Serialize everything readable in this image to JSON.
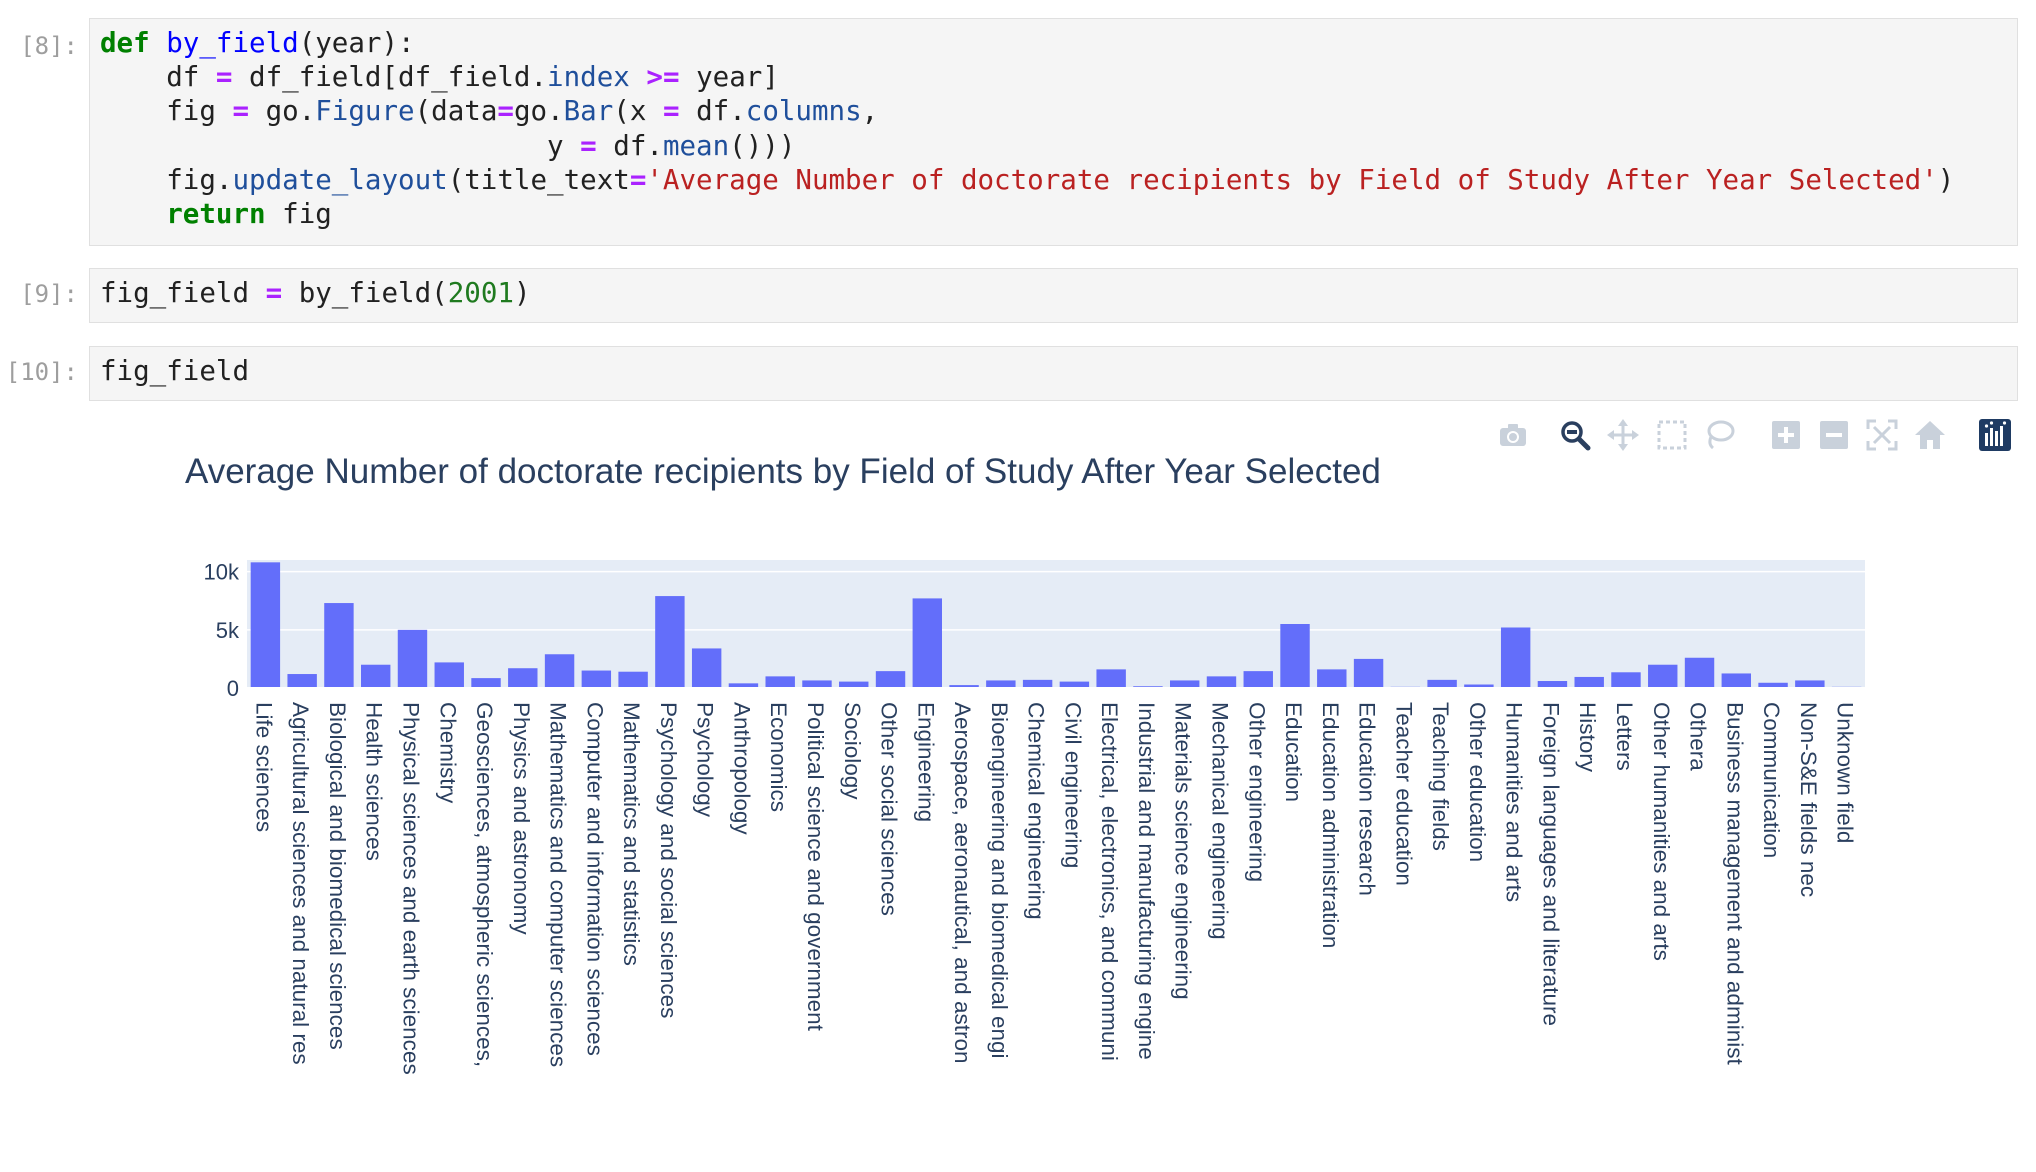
{
  "cells": [
    {
      "prompt": "[8]:",
      "lines": [
        [
          [
            "kw",
            "def"
          ],
          [
            "t",
            " "
          ],
          [
            "fn",
            "by_field"
          ],
          [
            "t",
            "(year):"
          ]
        ],
        [
          [
            "t",
            "    df "
          ],
          [
            "op",
            "="
          ],
          [
            "t",
            " df_field[df_field."
          ],
          [
            "attr",
            "index"
          ],
          [
            "t",
            " "
          ],
          [
            "op",
            ">="
          ],
          [
            "t",
            " year]"
          ]
        ],
        [
          [
            "t",
            "    fig "
          ],
          [
            "op",
            "="
          ],
          [
            "t",
            " go."
          ],
          [
            "attr",
            "Figure"
          ],
          [
            "t",
            "(data"
          ],
          [
            "op",
            "="
          ],
          [
            "t",
            "go."
          ],
          [
            "attr",
            "Bar"
          ],
          [
            "t",
            "(x "
          ],
          [
            "op",
            "="
          ],
          [
            "t",
            " df."
          ],
          [
            "attr",
            "columns"
          ],
          [
            "t",
            ","
          ]
        ],
        [
          [
            "t",
            "                           y "
          ],
          [
            "op",
            "="
          ],
          [
            "t",
            " df."
          ],
          [
            "attr",
            "mean"
          ],
          [
            "t",
            "()))"
          ]
        ],
        [
          [
            "t",
            "    fig."
          ],
          [
            "attr",
            "update_layout"
          ],
          [
            "t",
            "(title_text"
          ],
          [
            "op",
            "="
          ],
          [
            "str",
            "'Average Number of doctorate recipients by Field of Study After Year Selected'"
          ],
          [
            "t",
            ")"
          ]
        ],
        [
          [
            "t",
            "    "
          ],
          [
            "kw",
            "return"
          ],
          [
            "t",
            " fig"
          ]
        ]
      ]
    },
    {
      "prompt": "[9]:",
      "lines": [
        [
          [
            "t",
            "fig_field "
          ],
          [
            "op",
            "="
          ],
          [
            "t",
            " by_field("
          ],
          [
            "num",
            "2001"
          ],
          [
            "t",
            ")"
          ]
        ]
      ]
    },
    {
      "prompt": "[10]:",
      "lines": [
        [
          [
            "t",
            "fig_field"
          ]
        ]
      ]
    }
  ],
  "toolbar": {
    "icons": [
      "camera-icon",
      "zoom-icon",
      "pan-icon",
      "box-select-icon",
      "lasso-select-icon",
      "zoom-in-icon",
      "zoom-out-icon",
      "autoscale-icon",
      "reset-axes-icon",
      "plotly-logo-icon"
    ]
  },
  "chart_data": {
    "type": "bar",
    "title": "Average Number of doctorate recipients by Field of Study After Year Selected",
    "xlabel": "",
    "ylabel": "",
    "ylim": [
      0,
      11000
    ],
    "yticks": [
      0,
      5000,
      10000
    ],
    "ytick_labels": [
      "0",
      "5k",
      "10k"
    ],
    "bar_color": "#636efa",
    "plot_bg": "#e5ecf6",
    "categories": [
      "Life sciences",
      "Agricultural sciences and natural res",
      "Biological and biomedical sciences",
      "Health sciences",
      "Physical sciences and earth sciences",
      "Chemistry",
      "Geosciences, atmospheric sciences,",
      "Physics and astronomy",
      "Mathematics and computer sciences",
      "Computer and information sciences",
      "Mathematics and statistics",
      "Psychology and social sciences",
      "Psychology",
      "Anthropology",
      "Economics",
      "Political science and government",
      "Sociology",
      "Other social sciences",
      "Engineering",
      "Aerospace, aeronautical, and astron",
      "Bioengineering and biomedical engi",
      "Chemical engineering",
      "Civil engineering",
      "Electrical, electronics, and communi",
      "Industrial and manufacturing engine",
      "Materials science engineering",
      "Mechanical engineering",
      "Other engineering",
      "Education",
      "Education administration",
      "Education research",
      "Teacher education",
      "Teaching fields",
      "Other education",
      "Humanities and arts",
      "Foreign languages and literature",
      "History",
      "Letters",
      "Other humanities and arts",
      "Othera",
      "Business management and administ",
      "Communication",
      "Non-S&E fields nec",
      "Unknown field"
    ],
    "values": [
      10800,
      1200,
      7300,
      2000,
      5000,
      2200,
      850,
      1700,
      2900,
      1500,
      1400,
      7900,
      3400,
      400,
      1000,
      650,
      550,
      1450,
      7700,
      250,
      650,
      700,
      550,
      1600,
      150,
      650,
      1000,
      1450,
      5500,
      1600,
      2500,
      100,
      700,
      300,
      5200,
      600,
      950,
      1350,
      2000,
      2600,
      1250,
      450,
      650,
      100
    ]
  }
}
